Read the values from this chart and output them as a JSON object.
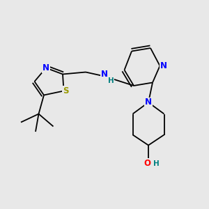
{
  "background_color": "#e8e8e8",
  "bond_color": "#000000",
  "atom_colors": {
    "N_blue": "#0000ff",
    "S_yellow": "#999900",
    "N_teal": "#008080",
    "O_red": "#ff0000",
    "C": "#000000"
  },
  "fig_width": 3.0,
  "fig_height": 3.0,
  "dpi": 100,
  "xlim": [
    0,
    10
  ],
  "ylim": [
    0,
    10
  ]
}
